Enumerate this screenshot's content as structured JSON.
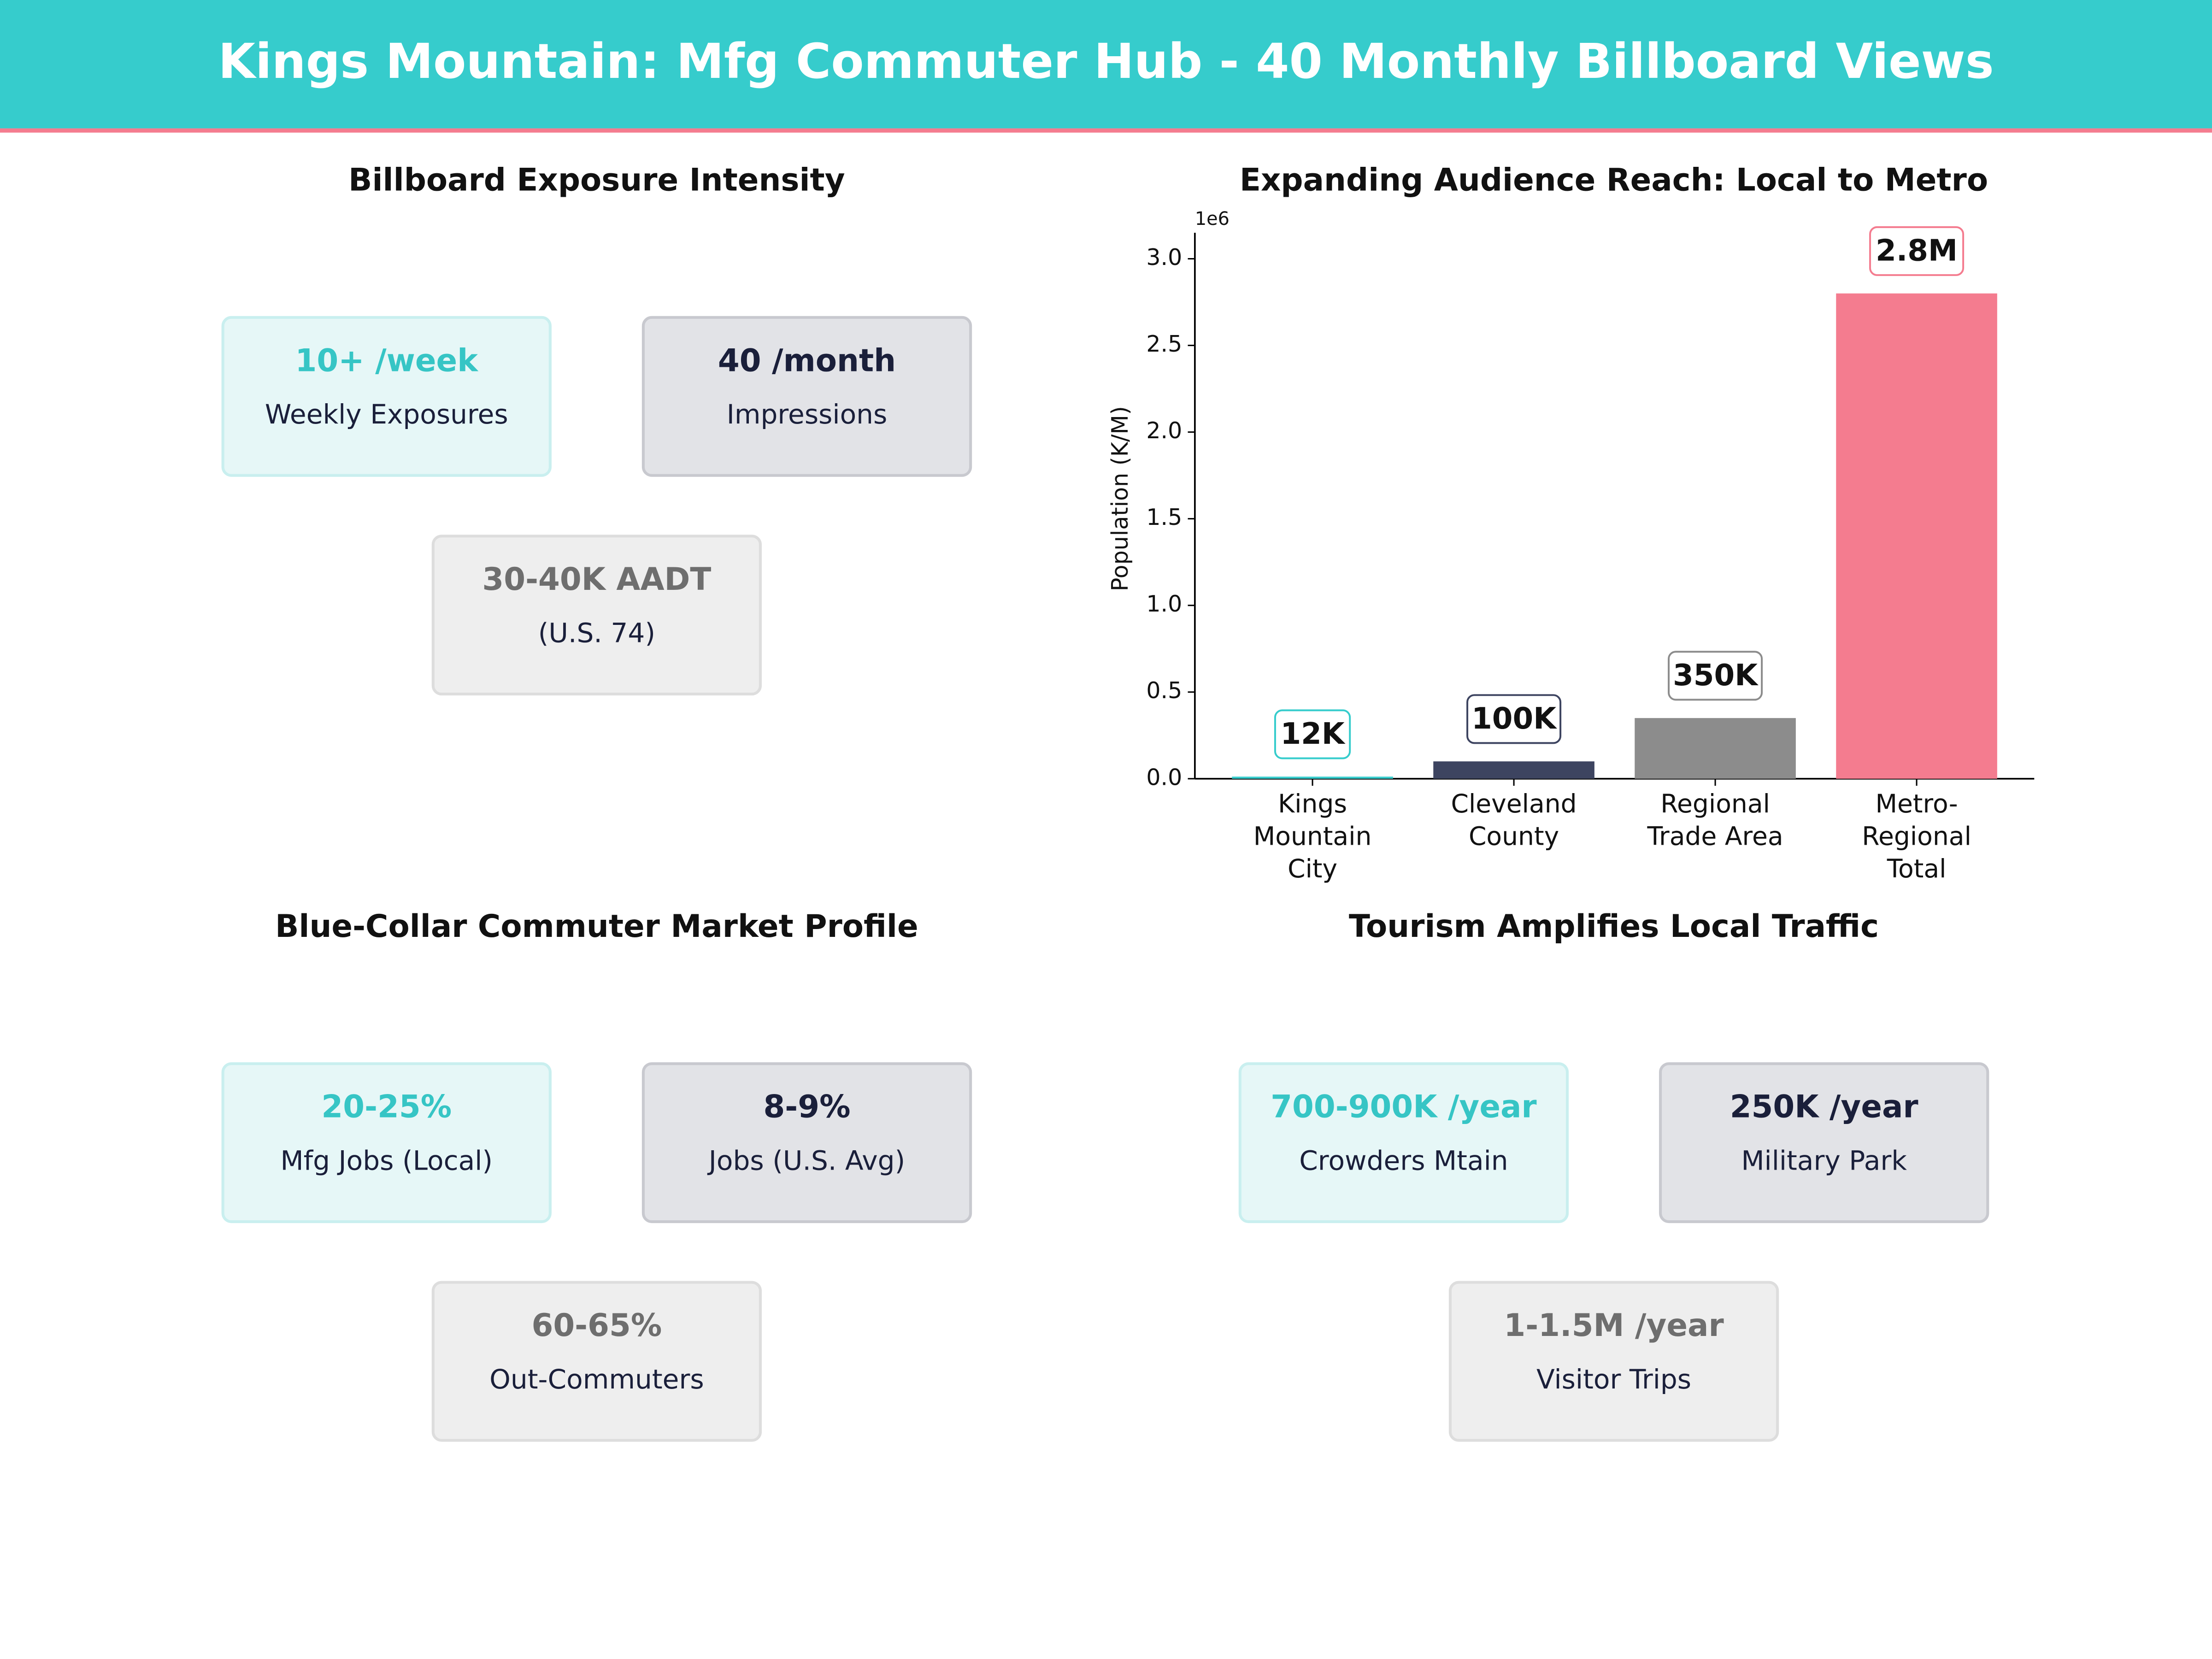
{
  "header": {
    "title": "Kings Mountain: Mfg Commuter Hub - 40 Monthly Billboard Views"
  },
  "exposure": {
    "title": "Billboard Exposure Intensity",
    "cards": [
      {
        "value": "10+ /week",
        "label": "Weekly Exposures"
      },
      {
        "value": "40 /month",
        "label": "Impressions"
      },
      {
        "value": "30-40K AADT",
        "label": "(U.S. 74)"
      }
    ]
  },
  "chart_data": {
    "type": "bar",
    "title": "Expanding Audience Reach: Local to Metro",
    "y_label": "Population (K/M)",
    "y_offset_label": "1e6",
    "categories": [
      "Kings\nMountain\nCity",
      "Cleveland\nCounty",
      "Regional\nTrade Area",
      "Metro-\nRegional\nTotal"
    ],
    "values": [
      12000,
      100000,
      350000,
      2800000
    ],
    "value_labels": [
      "12K",
      "100K",
      "350K",
      "2.8M"
    ],
    "colors": [
      "#36cccc",
      "#3d4460",
      "#8c8c8c",
      "#f47c8f"
    ],
    "ylim": [
      0,
      3150000
    ],
    "yticks": [
      {
        "value": 0,
        "label": "0.0"
      },
      {
        "value": 500000,
        "label": "0.5"
      },
      {
        "value": 1000000,
        "label": "1.0"
      },
      {
        "value": 1500000,
        "label": "1.5"
      },
      {
        "value": 2000000,
        "label": "2.0"
      },
      {
        "value": 2500000,
        "label": "2.5"
      },
      {
        "value": 3000000,
        "label": "3.0"
      }
    ],
    "grid": false
  },
  "market": {
    "title": "Blue-Collar Commuter Market Profile",
    "cards": [
      {
        "value": "20-25%",
        "label": "Mfg Jobs (Local)"
      },
      {
        "value": "8-9%",
        "label": "Jobs (U.S. Avg)"
      },
      {
        "value": "60-65%",
        "label": "Out-Commuters"
      }
    ]
  },
  "tourism": {
    "title": "Tourism Amplifies Local Traffic",
    "cards": [
      {
        "value": "700-900K /year",
        "label": "Crowders Mtain"
      },
      {
        "value": "250K /year",
        "label": "Military Park"
      },
      {
        "value": "1-1.5M /year",
        "label": "Visitor Trips"
      }
    ]
  }
}
